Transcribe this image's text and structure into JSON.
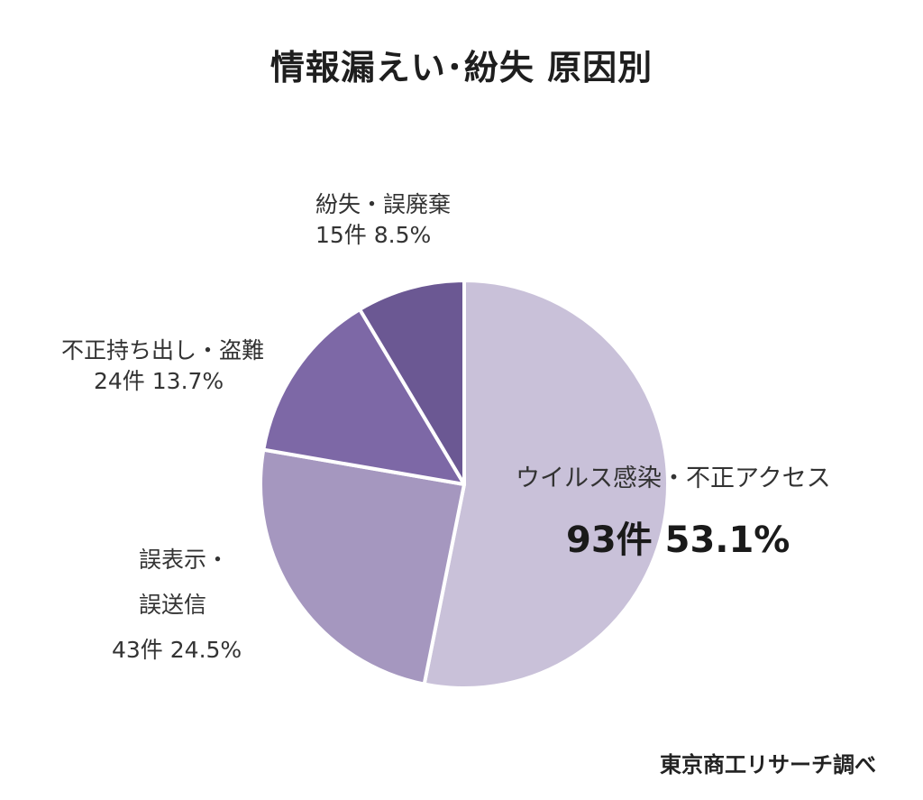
{
  "chart_data": {
    "type": "pie",
    "title": "情報漏えい･紛失 原因別",
    "source": "東京商工リサーチ調べ",
    "slices": [
      {
        "name": "ウイルス感染・不正アクセス",
        "count_label": "93件",
        "percent_label": "53.1%",
        "value": 93,
        "percent": 53.1,
        "color": "#c9c1d9"
      },
      {
        "name_lines": [
          "誤表示・",
          "誤送信"
        ],
        "count_label": "43件",
        "percent_label": "24.5%",
        "value": 43,
        "percent": 24.5,
        "color": "#a597bf"
      },
      {
        "name": "不正持ち出し・盗難",
        "count_label": "24件",
        "percent_label": "13.7%",
        "value": 24,
        "percent": 13.7,
        "color": "#7d68a6"
      },
      {
        "name": "紛失・誤廃棄",
        "count_label": "15件",
        "percent_label": "8.5%",
        "value": 15,
        "percent": 8.5,
        "color": "#6b5893"
      }
    ]
  }
}
